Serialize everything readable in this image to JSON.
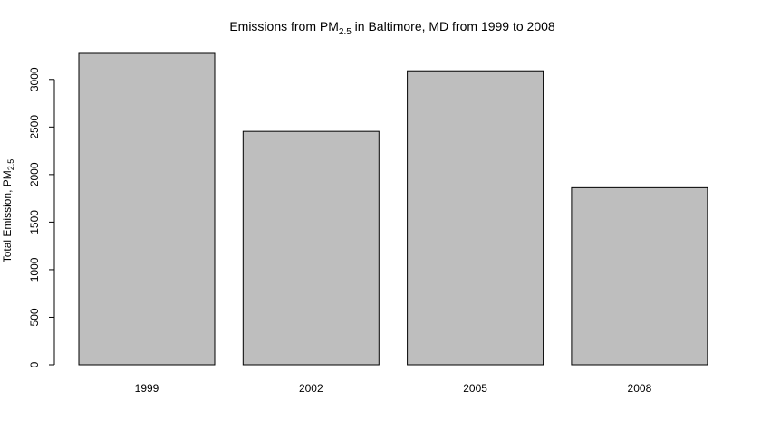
{
  "chart_data": {
    "type": "bar",
    "title": {
      "prefix": "Emissions from PM",
      "subscript": "2.5",
      "suffix": " in Baltimore, MD from 1999 to 2008"
    },
    "xlabel": "",
    "ylabel": {
      "prefix": "Total Emission, PM",
      "subscript": "2.5"
    },
    "categories": [
      "1999",
      "2002",
      "2005",
      "2008"
    ],
    "values": [
      3274,
      2454,
      3091,
      1862
    ],
    "ylim": [
      0,
      3274
    ],
    "yticks": [
      0,
      500,
      1000,
      1500,
      2000,
      2500,
      3000
    ],
    "grid": false,
    "legend": "none",
    "bar_color": "#bebebe",
    "bar_border_color": "#000000"
  }
}
